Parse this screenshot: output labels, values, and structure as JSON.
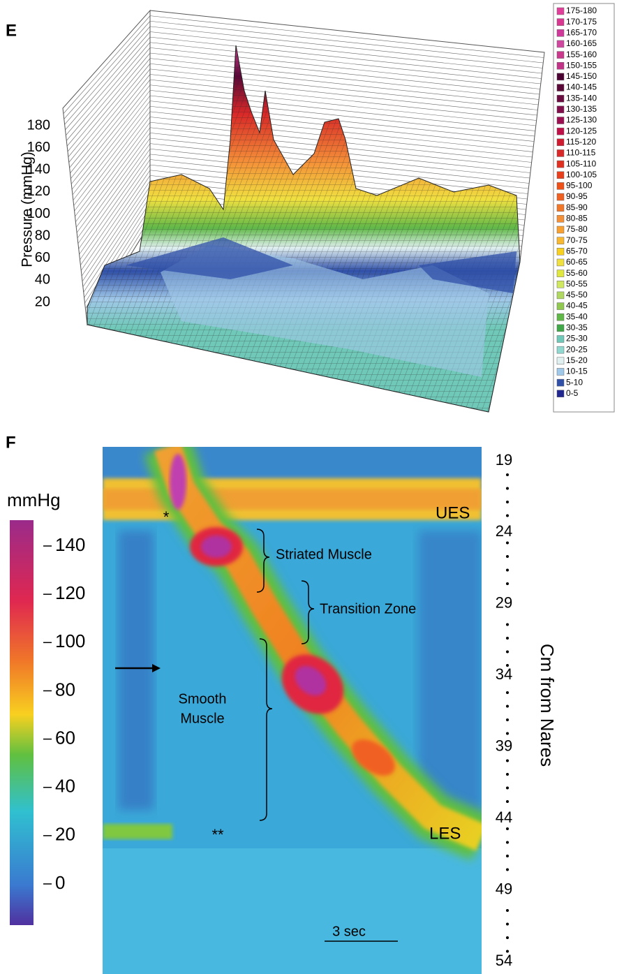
{
  "panel_e": {
    "label": "E",
    "y_axis_label": "Pressure (mmHg)",
    "yticks": [
      180,
      160,
      140,
      120,
      100,
      80,
      60,
      40,
      20
    ],
    "legend": [
      "175-180",
      "170-175",
      "165-170",
      "160-165",
      "155-160",
      "150-155",
      "145-150",
      "140-145",
      "135-140",
      "130-135",
      "125-130",
      "120-125",
      "115-120",
      "110-115",
      "105-110",
      "100-105",
      "95-100",
      "90-95",
      "85-90",
      "80-85",
      "75-80",
      "70-75",
      "65-70",
      "60-65",
      "55-60",
      "50-55",
      "45-50",
      "40-45",
      "35-40",
      "30-35",
      "25-30",
      "20-25",
      "15-20",
      "10-15",
      "5-10",
      "0-5"
    ]
  },
  "panel_f": {
    "label": "F",
    "colorbar_title": "mmHg",
    "colorbar_ticks": [
      140,
      120,
      100,
      80,
      60,
      40,
      20,
      0
    ],
    "right_axis_ticks": [
      19,
      24,
      29,
      34,
      39,
      44,
      49,
      54
    ],
    "right_axis_label": "Cm from Nares",
    "annotations": {
      "ues": "UES",
      "les": "LES",
      "striated": "Striated Muscle",
      "transition": "Transition Zone",
      "smooth": [
        "Smooth",
        "Muscle"
      ],
      "star": "*",
      "double_star": "**",
      "scale_bar": "3 sec"
    }
  }
}
